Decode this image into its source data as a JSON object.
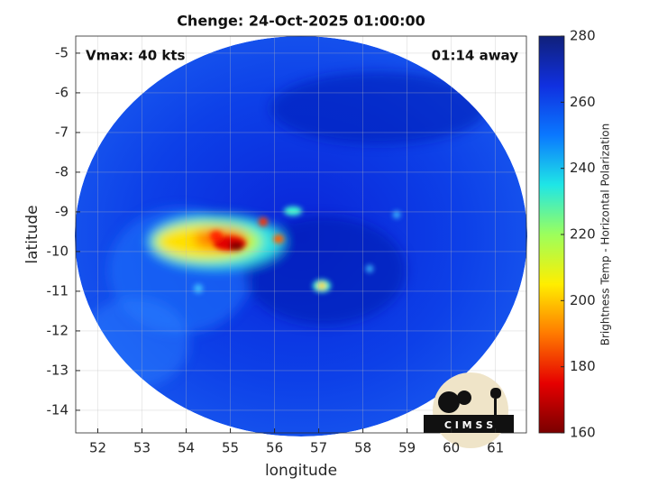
{
  "chart_data": {
    "type": "image",
    "title": "Chenge: 24-Oct-2025 01:00:00",
    "annotations": [
      "Vmax: 40 kts",
      "01:14 away"
    ],
    "xlabel": "longitude",
    "ylabel": "latitude",
    "xlim": [
      51.5,
      61.7
    ],
    "ylim": [
      -14.57,
      -4.57
    ],
    "xticks": [
      52,
      53,
      54,
      55,
      56,
      57,
      58,
      59,
      60,
      61
    ],
    "yticks": [
      -14,
      -13,
      -12,
      -11,
      -10,
      -9,
      -8,
      -7,
      -6,
      -5
    ],
    "grid": true,
    "colorbar": {
      "label": "Brightness Temp - Horizontal Polarization",
      "lim": [
        160,
        280
      ],
      "ticks": [
        160,
        180,
        200,
        220,
        240,
        260,
        280
      ],
      "colormap": [
        "#7a0000",
        "#e60000",
        "#ff7a00",
        "#ffee00",
        "#9cff5c",
        "#1fe6e6",
        "#0a78ff",
        "#1030e0",
        "#10207a"
      ]
    },
    "logo": "C I M S S"
  }
}
